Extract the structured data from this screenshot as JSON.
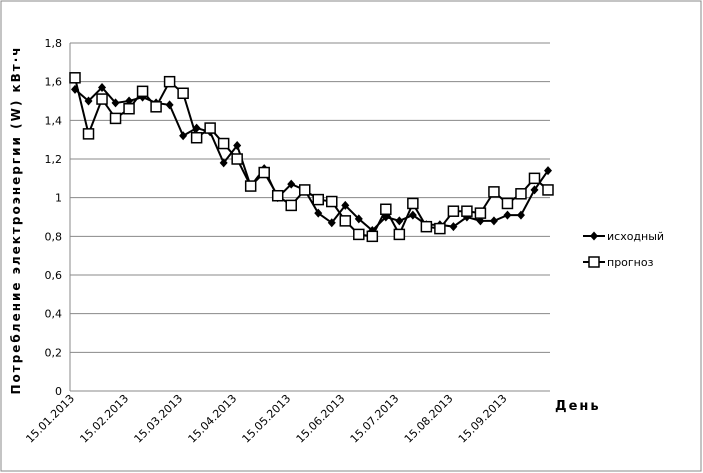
{
  "chart_data": {
    "type": "line",
    "y_label": "Потребление электроэнергии (W) кВт·ч",
    "x_label": "День",
    "categories": [
      "15.01.2013",
      null,
      null,
      null,
      "15.02.2013",
      null,
      null,
      null,
      "15.03.2013",
      null,
      null,
      null,
      "15.04.2013",
      null,
      null,
      null,
      "15.05.2013",
      null,
      null,
      null,
      "15.06.2013",
      null,
      null,
      null,
      "15.07.2013",
      null,
      null,
      null,
      "15.08.2013",
      null,
      null,
      null,
      "15.09.2013",
      null,
      null,
      null
    ],
    "series": [
      {
        "name": "исходный",
        "color": "#000000",
        "marker": "diamond",
        "values": [
          1.56,
          1.5,
          1.57,
          1.49,
          1.5,
          1.52,
          1.49,
          1.48,
          1.32,
          1.36,
          1.34,
          1.18,
          1.27,
          1.06,
          1.15,
          1.0,
          1.07,
          1.04,
          0.92,
          0.87,
          0.96,
          0.89,
          0.83,
          0.9,
          0.88,
          0.91,
          0.86,
          0.86,
          0.85,
          0.9,
          0.88,
          0.88,
          0.91,
          0.91,
          1.04,
          1.14
        ]
      },
      {
        "name": "прогноз",
        "color": "#000000",
        "marker": "square",
        "values": [
          1.62,
          1.33,
          1.51,
          1.41,
          1.46,
          1.55,
          1.47,
          1.6,
          1.54,
          1.31,
          1.36,
          1.28,
          1.2,
          1.06,
          1.13,
          1.01,
          0.96,
          1.04,
          0.99,
          0.98,
          0.88,
          0.81,
          0.8,
          0.94,
          0.81,
          0.97,
          0.85,
          0.84,
          0.93,
          0.93,
          0.92,
          1.03,
          0.97,
          1.02,
          1.1,
          1.04
        ]
      }
    ],
    "ylim": [
      0,
      1.8
    ],
    "yticks": [
      0,
      {
        "value": 0.2,
        "label": "0,2"
      },
      {
        "value": 0.4,
        "label": "0,4"
      },
      {
        "value": 0.6,
        "label": "0,6"
      },
      {
        "value": 0.8,
        "label": "0,8"
      },
      1,
      {
        "value": 1.2,
        "label": "1,2"
      },
      {
        "value": 1.4,
        "label": "1,4"
      },
      {
        "value": 1.6,
        "label": "1,6"
      },
      {
        "value": 1.8,
        "label": "1,8"
      }
    ],
    "grid": true,
    "legend": "right"
  }
}
